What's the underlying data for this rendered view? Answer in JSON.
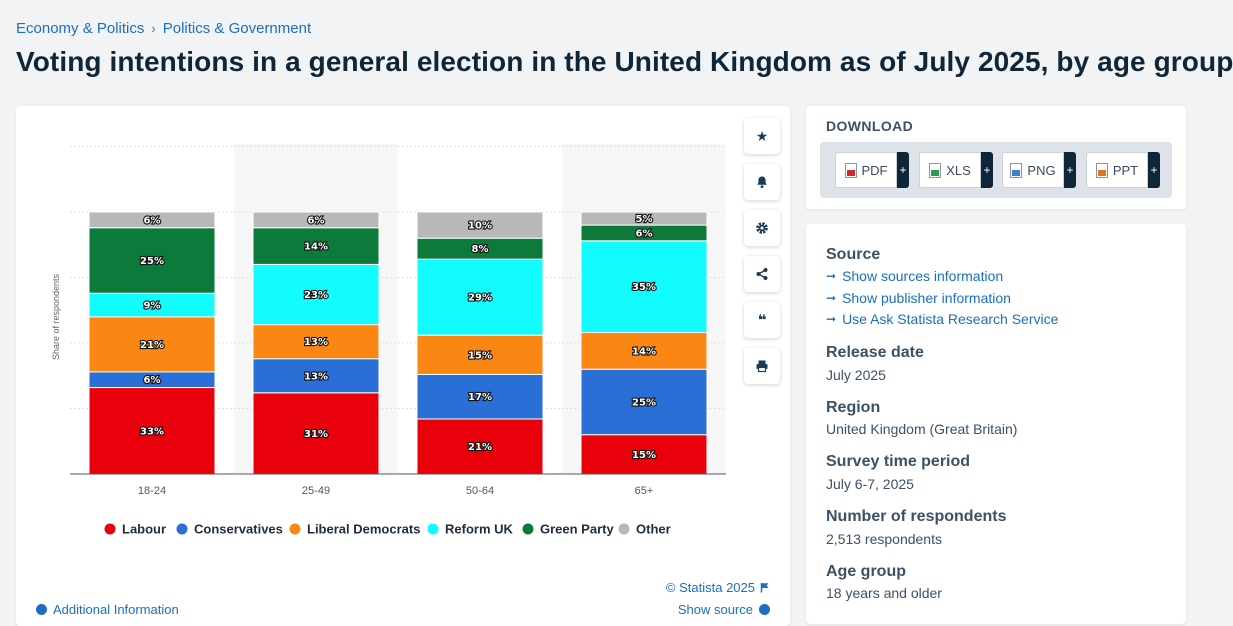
{
  "breadcrumb": [
    "Economy & Politics",
    "Politics & Government"
  ],
  "breadcrumb_sep": "›",
  "page_title": "Voting intentions in a general election in the United Kingdom as of July 2025, by age group",
  "chart_data": {
    "type": "bar",
    "stacked": true,
    "categories": [
      "18-24",
      "25-49",
      "50-64",
      "65+"
    ],
    "ylabel": "Share of respondents",
    "ylim": [
      0,
      100
    ],
    "grid": true,
    "legend_position": "bottom",
    "series": [
      {
        "name": "Labour",
        "color": "#e8000b",
        "values": [
          33,
          31,
          21,
          15
        ]
      },
      {
        "name": "Conservatives",
        "color": "#2a6fd6",
        "values": [
          6,
          13,
          17,
          25
        ]
      },
      {
        "name": "Liberal Democrats",
        "color": "#fa8613",
        "values": [
          21,
          13,
          15,
          14
        ]
      },
      {
        "name": "Reform UK",
        "color": "#12fbff",
        "values": [
          9,
          23,
          29,
          35
        ]
      },
      {
        "name": "Green Party",
        "color": "#0b7a3b",
        "values": [
          25,
          14,
          8,
          6
        ]
      },
      {
        "name": "Other",
        "color": "#b8b8b8",
        "values": [
          6,
          6,
          10,
          5
        ]
      }
    ]
  },
  "toolbar": {
    "icons": [
      "star-icon",
      "bell-icon",
      "gear-icon",
      "share-icon",
      "quote-icon",
      "print-icon"
    ],
    "star": "★",
    "quote": "❝"
  },
  "copyright": "© Statista 2025",
  "additional_info": "Additional Information",
  "show_source": "Show source",
  "download": {
    "title": "DOWNLOAD",
    "formats": [
      {
        "label": "PDF",
        "color": "#d6262f"
      },
      {
        "label": "XLS",
        "color": "#2d9a4a"
      },
      {
        "label": "PNG",
        "color": "#3b7fd0"
      },
      {
        "label": "PPT",
        "color": "#e2741e"
      }
    ],
    "plus": "+"
  },
  "info": {
    "source_label": "Source",
    "links": [
      "Show sources information",
      "Show publisher information",
      "Use Ask Statista Research Service"
    ],
    "arrow": "➞",
    "release_label": "Release date",
    "release_value": "July 2025",
    "region_label": "Region",
    "region_value": "United Kingdom (Great Britain)",
    "survey_label": "Survey time period",
    "survey_value": "July 6-7, 2025",
    "respondents_label": "Number of respondents",
    "respondents_value": "2,513 respondents",
    "age_label": "Age group",
    "age_value": "18 years and older"
  }
}
